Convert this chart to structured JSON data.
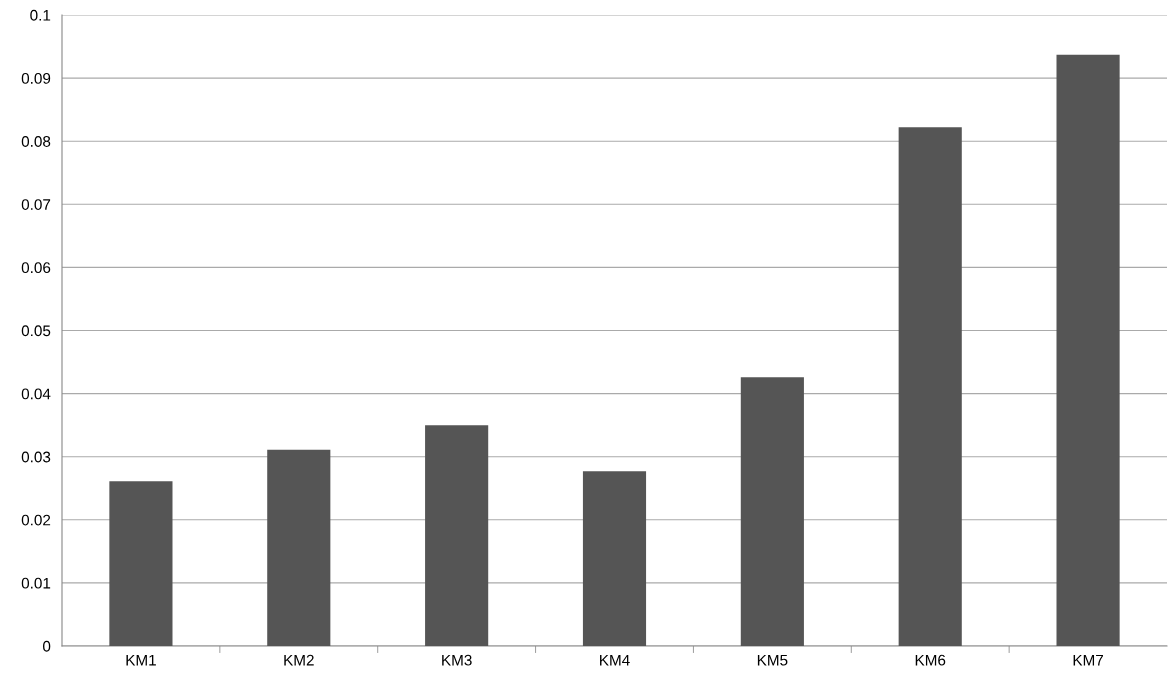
{
  "chart_data": {
    "type": "bar",
    "categories": [
      "KM1",
      "KM2",
      "KM3",
      "KM4",
      "KM5",
      "KM6",
      "KM7"
    ],
    "values": [
      0.0261,
      0.0311,
      0.035,
      0.0277,
      0.0426,
      0.0822,
      0.0937
    ],
    "color": "#555555",
    "ylim": [
      0,
      0.1
    ],
    "yticks": [
      0,
      0.01,
      0.02,
      0.03,
      0.04,
      0.05,
      0.06,
      0.07,
      0.08,
      0.09,
      0.1
    ],
    "grid": "y"
  }
}
